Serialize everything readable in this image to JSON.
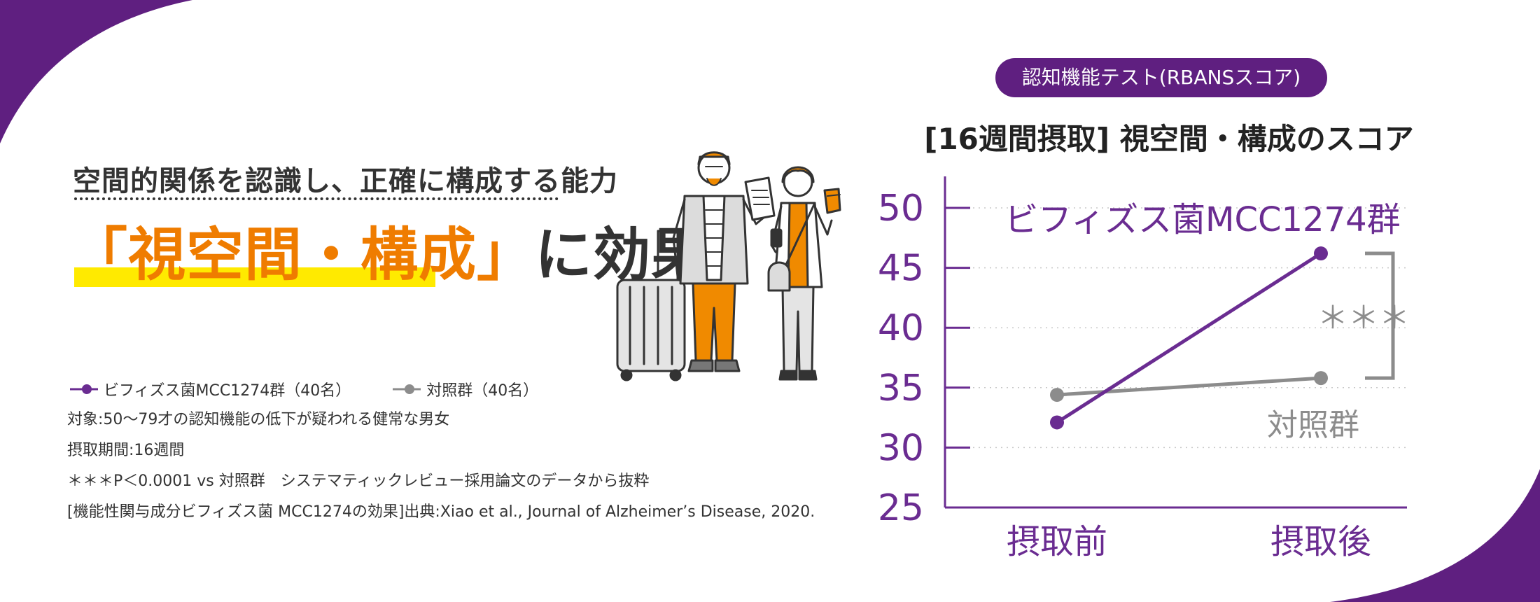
{
  "header": {
    "subtitle": "空間的関係を認識し、正確に構成する能力",
    "headline_highlight": "「視空間・構成」",
    "headline_rest": "に効果"
  },
  "legend": {
    "items": [
      {
        "label": "ビフィズス菌MCC1274群（40名）",
        "color": "#6a2c91"
      },
      {
        "label": "対照群（40名）",
        "color": "#8c8c8c"
      }
    ]
  },
  "notes": [
    "対象:50〜79才の認知機能の低下が疑われる健常な男女",
    "摂取期間:16週間",
    "＊＊＊P＜0.0001 vs 対照群　システマティックレビュー採用論文のデータから抜粋",
    "[機能性関与成分ビフィズス菌 MCC1274の効果]出典:Xiao et al., Journal of Alzheimer’s Disease, 2020."
  ],
  "colors": {
    "purple": "#6a2c91",
    "pill": "#5f1f80",
    "gray": "#8c8c8c",
    "orange": "#ef7c00",
    "highlight": "#ffea00"
  },
  "chart_data": {
    "type": "line",
    "badge": "認知機能テスト(RBANSスコア)",
    "title": "[16週間摂取] 視空間・構成のスコア",
    "categories": [
      "摂取前",
      "摂取後"
    ],
    "ylim": [
      25,
      50
    ],
    "yticks": [
      "25",
      "30",
      "35",
      "40",
      "45",
      "50"
    ],
    "grid": true,
    "series": [
      {
        "name": "ビフィズス菌MCC1274群",
        "values": [
          32.1,
          46.2
        ],
        "color": "#6a2c91"
      },
      {
        "name": "対照群",
        "values": [
          34.4,
          35.8
        ],
        "color": "#8c8c8c"
      }
    ],
    "significance": "＊＊＊"
  }
}
